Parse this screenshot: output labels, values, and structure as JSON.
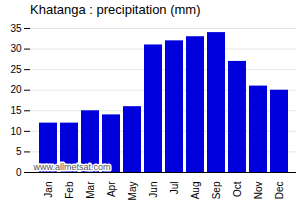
{
  "chart_data": {
    "type": "bar",
    "title": "Khatanga : precipitation (mm)",
    "categories": [
      "Jan",
      "Feb",
      "Mar",
      "Apr",
      "May",
      "Jun",
      "Jul",
      "Aug",
      "Sep",
      "Oct",
      "Nov",
      "Dec"
    ],
    "values": [
      12,
      12,
      15,
      14,
      16,
      31,
      32,
      33,
      34,
      27,
      21,
      20
    ],
    "color": "#0000dd",
    "ylim": [
      0,
      35
    ],
    "yticks": [
      0,
      5,
      10,
      15,
      20,
      25,
      30,
      35
    ],
    "grid": true,
    "annotations": [
      "www.allmetsat.com"
    ]
  }
}
